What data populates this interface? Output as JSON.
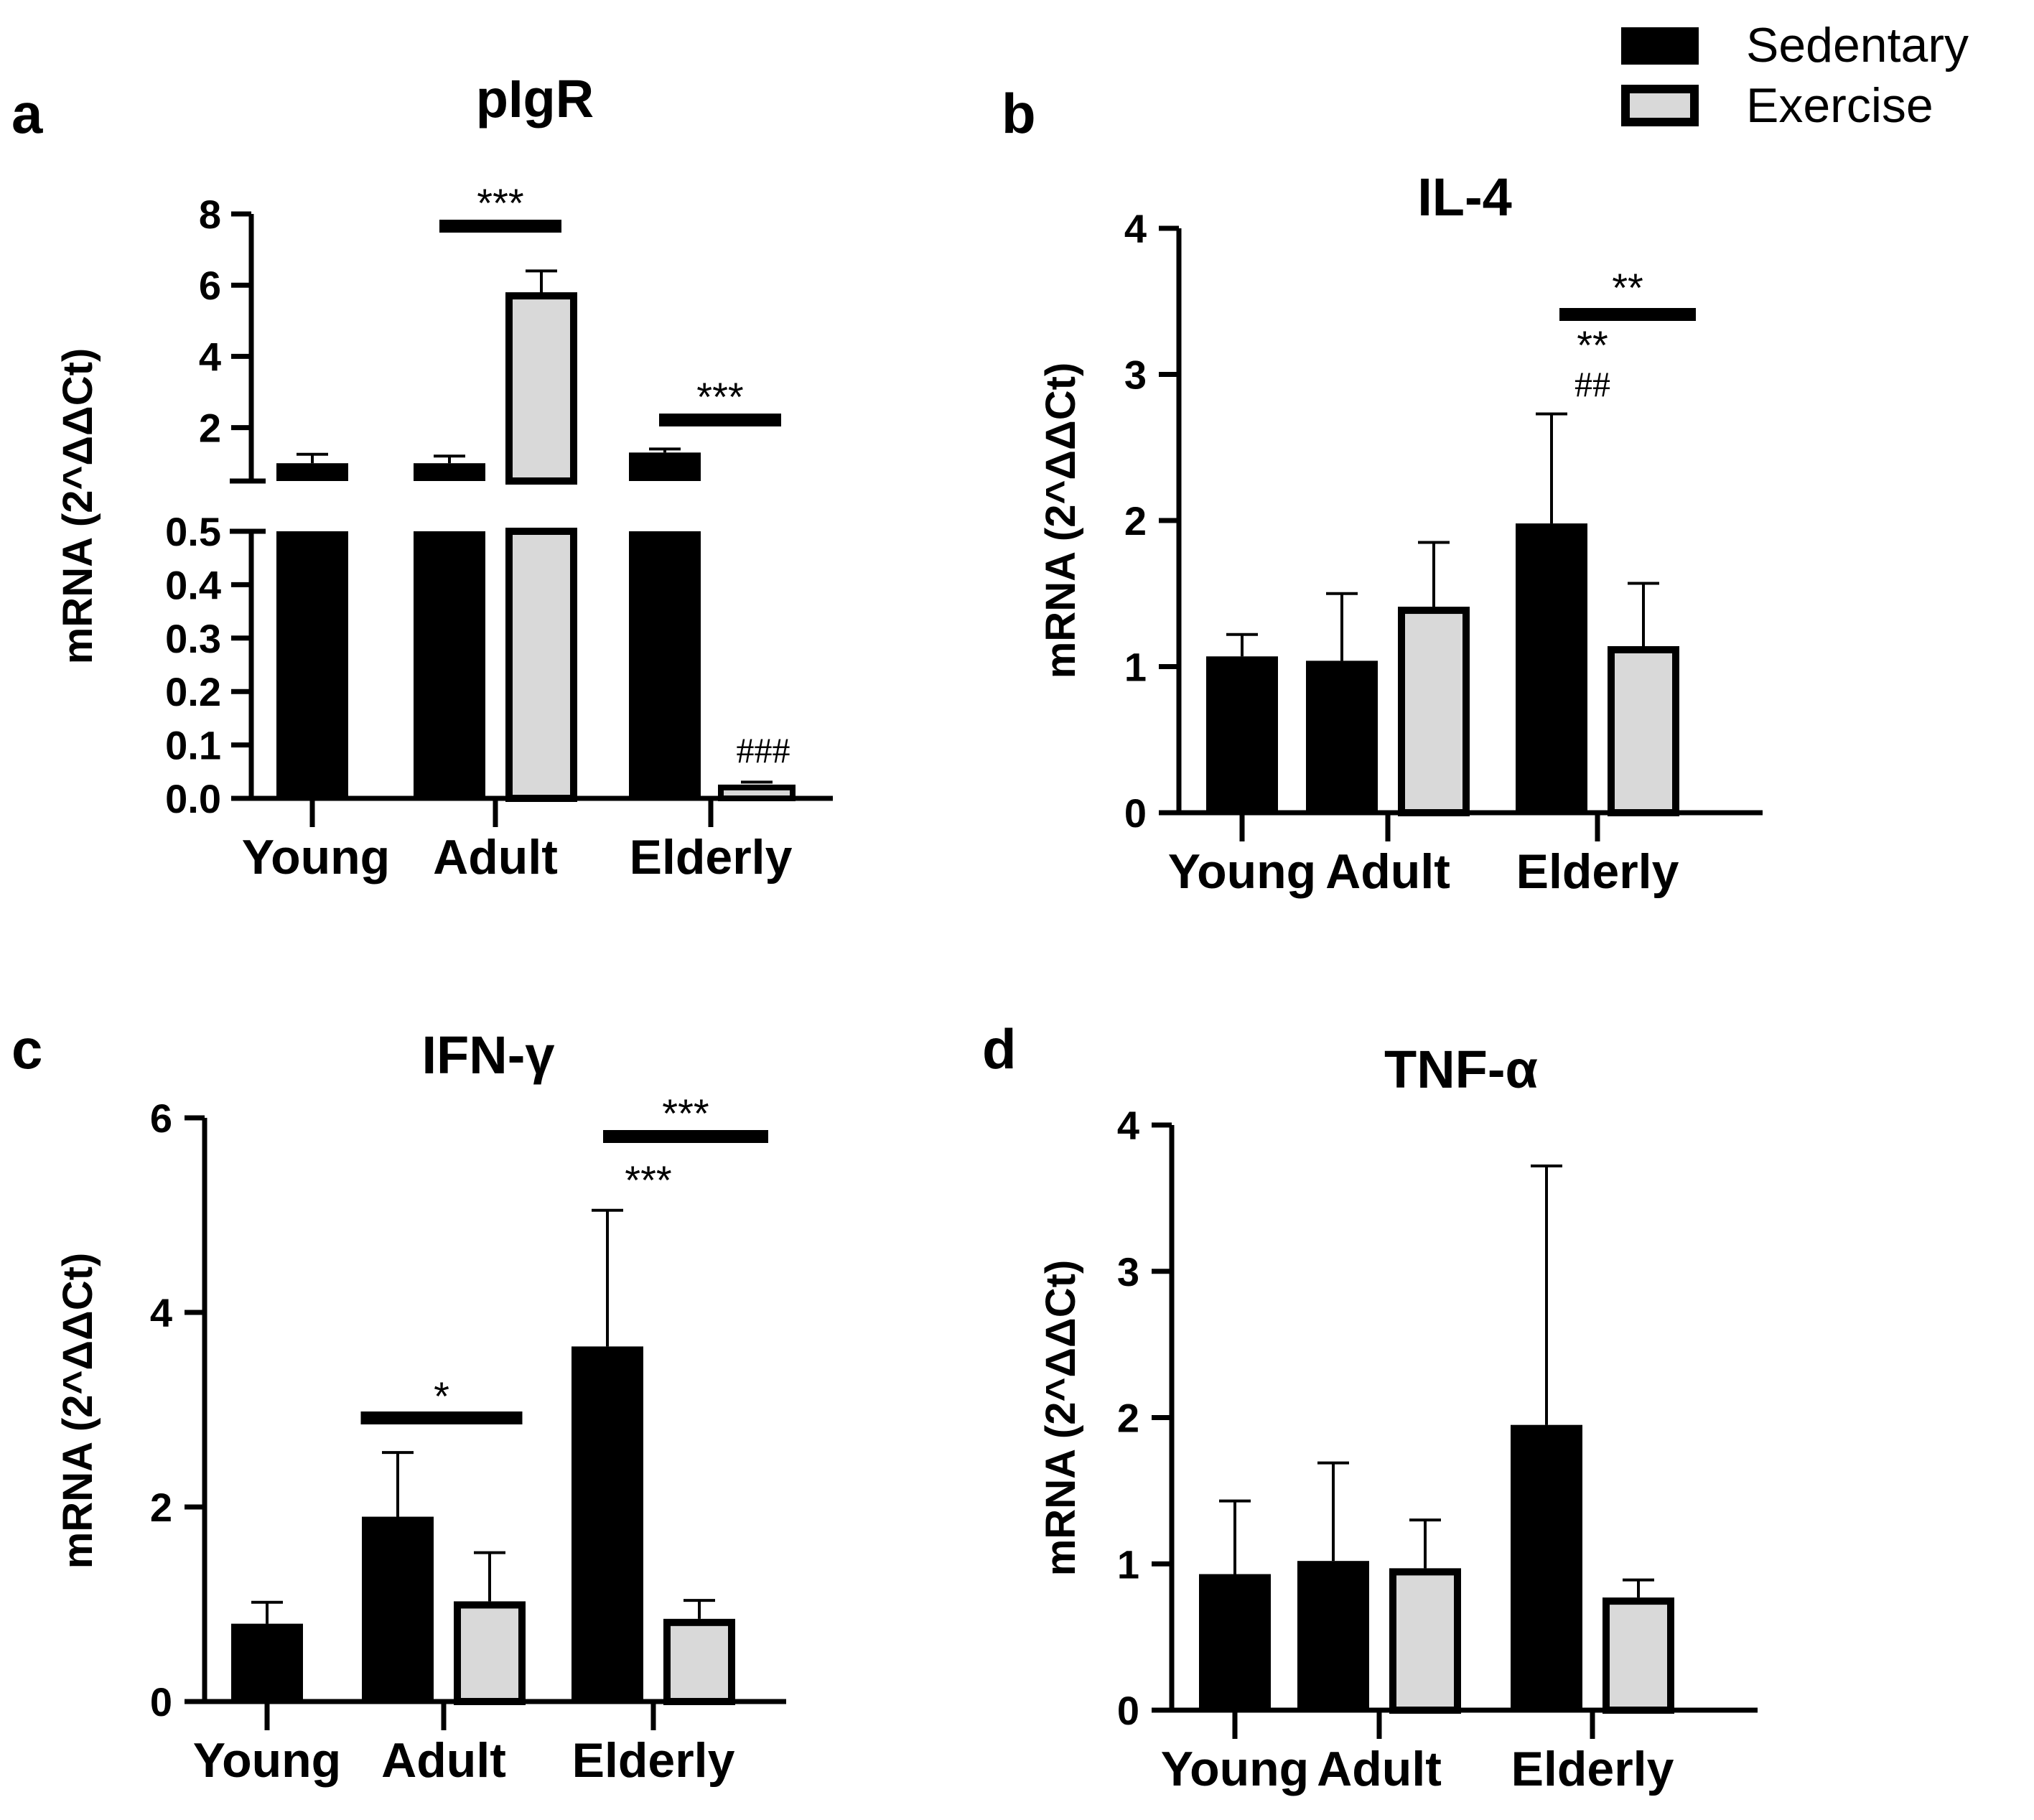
{
  "legend": {
    "entries": [
      {
        "label": "Sedentary",
        "color": "#000000"
      },
      {
        "label": "Exercise",
        "color": "#d9d9d9"
      }
    ],
    "placement": "top-right"
  },
  "chart_data": [
    {
      "panel": "a",
      "type": "bar",
      "title": "pIgR",
      "ylabel": "mRNA (2^ΔΔCt)",
      "categories": [
        "Young",
        "Adult",
        "Elderly"
      ],
      "y_axis": "split",
      "ylim_lower": [
        0,
        0.5
      ],
      "ylim_upper": [
        0.5,
        8
      ],
      "yticks_lower": [
        "0.0",
        "0.1",
        "0.2",
        "0.3",
        "0.4",
        "0.5"
      ],
      "yticks_upper": [
        "2",
        "4",
        "6",
        "8"
      ],
      "series": [
        {
          "name": "Sedentary",
          "values": [
            1.0,
            1.0,
            1.3
          ],
          "errors": [
            0.25,
            0.2,
            0.1
          ]
        },
        {
          "name": "Exercise",
          "values": [
            null,
            5.7,
            0.015
          ],
          "errors": [
            null,
            0.7,
            0.01
          ]
        }
      ],
      "annotations": [
        {
          "text": "***",
          "type": "bracket",
          "category": "Adult"
        },
        {
          "text": "***",
          "type": "bracket",
          "category": "Elderly"
        },
        {
          "text": "###",
          "type": "bar-label",
          "category": "Elderly",
          "series": "Exercise"
        }
      ]
    },
    {
      "panel": "b",
      "type": "bar",
      "title": "IL-4",
      "ylabel": "mRNA (2^ΔΔCt)",
      "categories": [
        "Young",
        "Adult",
        "Elderly"
      ],
      "ylim": [
        0,
        4
      ],
      "yticks": [
        "0",
        "1",
        "2",
        "3",
        "4"
      ],
      "series": [
        {
          "name": "Sedentary",
          "values": [
            1.07,
            1.04,
            1.98
          ],
          "errors": [
            0.15,
            0.46,
            0.75
          ]
        },
        {
          "name": "Exercise",
          "values": [
            null,
            1.41,
            1.14
          ],
          "errors": [
            null,
            0.44,
            0.43
          ]
        }
      ],
      "annotations": [
        {
          "text": "**",
          "type": "bracket",
          "category": "Elderly"
        },
        {
          "text": "**",
          "type": "bar-label",
          "category": "Elderly",
          "series": "Sedentary"
        },
        {
          "text": "##",
          "type": "bar-label",
          "category": "Elderly",
          "series": "Sedentary"
        }
      ]
    },
    {
      "panel": "c",
      "type": "bar",
      "title": "IFN-γ",
      "ylabel": "mRNA (2^ΔΔCt)",
      "categories": [
        "Young",
        "Adult",
        "Elderly"
      ],
      "ylim": [
        0,
        6
      ],
      "yticks": [
        "0",
        "2",
        "4",
        "6"
      ],
      "series": [
        {
          "name": "Sedentary",
          "values": [
            0.8,
            1.9,
            3.65
          ],
          "errors": [
            0.22,
            0.66,
            1.4
          ]
        },
        {
          "name": "Exercise",
          "values": [
            null,
            1.03,
            0.85
          ],
          "errors": [
            null,
            0.5,
            0.19
          ]
        }
      ],
      "annotations": [
        {
          "text": "*",
          "type": "bracket",
          "category": "Adult"
        },
        {
          "text": "***",
          "type": "bracket",
          "category": "Elderly"
        },
        {
          "text": "***",
          "type": "bar-label",
          "category": "Elderly",
          "series": "Sedentary"
        }
      ]
    },
    {
      "panel": "d",
      "type": "bar",
      "title": "TNF-α",
      "ylabel": "mRNA (2^ΔΔCt)",
      "categories": [
        "Young",
        "Adult",
        "Elderly"
      ],
      "ylim": [
        0,
        4
      ],
      "yticks": [
        "0",
        "1",
        "2",
        "3",
        "4"
      ],
      "series": [
        {
          "name": "Sedentary",
          "values": [
            0.93,
            1.02,
            1.95
          ],
          "errors": [
            0.5,
            0.67,
            1.77
          ]
        },
        {
          "name": "Exercise",
          "values": [
            null,
            0.97,
            0.77
          ],
          "errors": [
            null,
            0.33,
            0.12
          ]
        }
      ],
      "annotations": []
    }
  ]
}
